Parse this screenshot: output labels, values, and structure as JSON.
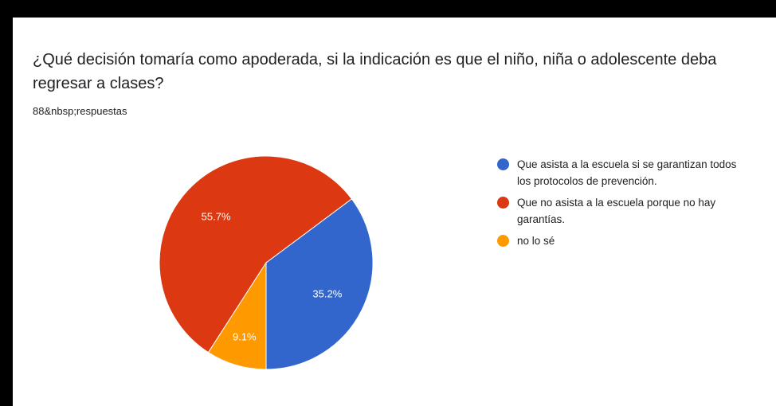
{
  "form": {
    "question": "¿Qué decisión tomaría como apoderada, si la indicación es que el niño, niña o adolescente deba regresar a clases?",
    "responses_text": "88&nbsp;respuestas"
  },
  "chart_data": {
    "type": "pie",
    "title": "¿Qué decisión tomaría como apoderada, si la indicación es que el niño, niña o adolescente deba regresar a clases?",
    "slices": [
      {
        "label": "Que asista a la escuela si se garantizan todos los protocolos de prevención.",
        "value": 35.2,
        "display": "35.2%",
        "color": "#3366cc"
      },
      {
        "label": "Que no asista a la escuela porque no hay garantías.",
        "value": 55.7,
        "display": "55.7%",
        "color": "#dc3912"
      },
      {
        "label": "no lo sé",
        "value": 9.1,
        "display": "9.1%",
        "color": "#ff9900"
      }
    ],
    "legend_position": "right"
  }
}
